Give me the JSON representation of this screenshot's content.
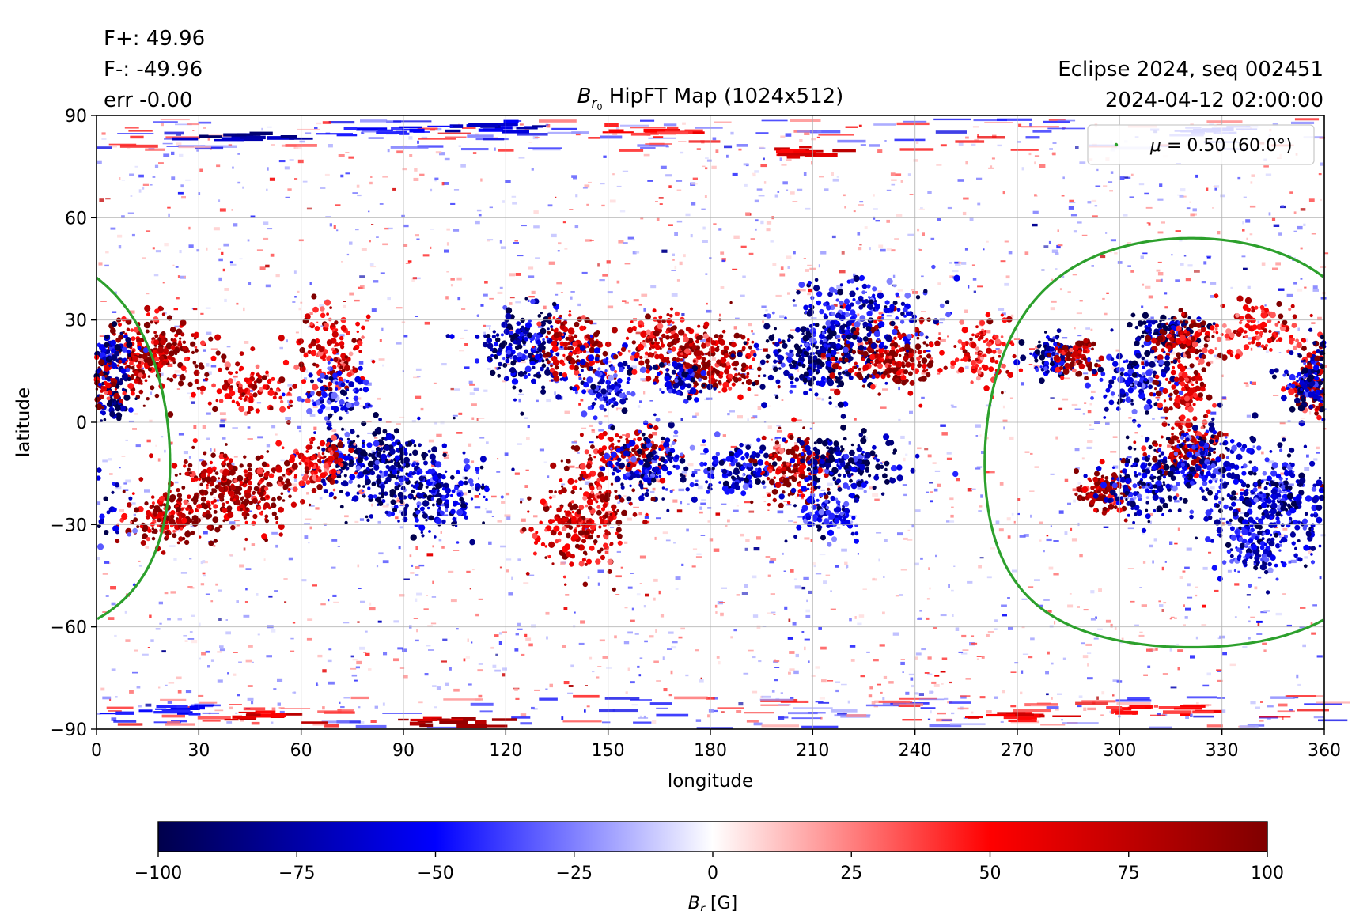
{
  "stats": {
    "fplus": "F+: 49.96",
    "fminus": "F-: -49.96",
    "err": "err -0.00"
  },
  "info": {
    "line1": "Eclipse 2024, seq 002451",
    "line2": "2024-04-12 02:00:00"
  },
  "chart_data": {
    "type": "heatmap",
    "title": {
      "symbol": "B",
      "subscript": "r",
      "subsub": "0",
      "text": " HipFT Map (1024x512)"
    },
    "xlabel": "longitude",
    "ylabel": "latitude",
    "xlim": [
      0,
      360
    ],
    "ylim": [
      -90,
      90
    ],
    "xticks": [
      0,
      30,
      60,
      90,
      120,
      150,
      180,
      210,
      240,
      270,
      300,
      330,
      360
    ],
    "yticks": [
      -90,
      -60,
      -30,
      0,
      30,
      60,
      90
    ],
    "ytick_labels": [
      "−90",
      "−60",
      "−30",
      "0",
      "30",
      "60",
      "90"
    ],
    "grid": true,
    "legend": {
      "position": "top-right",
      "label_symbol": "μ",
      "label_text": " = 0.50 (60.0°)",
      "color": "#2ca02c"
    },
    "mu_contour": {
      "mu": 0.5,
      "angle_deg": 60.0,
      "center_lon": 321,
      "center_lat": -6,
      "color": "#2ca02c"
    },
    "colormap": {
      "name": "seismic",
      "low": "#00004c",
      "mid_low": "#0000ff",
      "mid": "#ffffff",
      "mid_high": "#ff0000",
      "high": "#800000"
    },
    "colorbar": {
      "min": -100,
      "max": 100,
      "ticks": [
        -100,
        -75,
        -50,
        -25,
        0,
        25,
        50,
        75,
        100
      ],
      "tick_labels": [
        "−100",
        "−75",
        "−50",
        "−25",
        "0",
        "25",
        "50",
        "75",
        "100"
      ],
      "label_symbol": "B",
      "label_sub": "r",
      "label_unit": " [G]"
    },
    "active_regions": [
      {
        "lon": 15,
        "lat": 20,
        "polarity": 1,
        "strength": 1.0,
        "spread_lon": 8,
        "spread_lat": 6
      },
      {
        "lon": 3,
        "lat": 20,
        "polarity": -1,
        "strength": 0.9,
        "spread_lon": 4,
        "spread_lat": 3
      },
      {
        "lon": 2,
        "lat": 8,
        "polarity": -1,
        "strength": 1.0,
        "spread_lon": 4,
        "spread_lat": 3
      },
      {
        "lon": 45,
        "lat": 10,
        "polarity": 1,
        "strength": 0.7,
        "spread_lon": 6,
        "spread_lat": 4
      },
      {
        "lon": 70,
        "lat": 20,
        "polarity": 1,
        "strength": 0.7,
        "spread_lon": 5,
        "spread_lat": 6
      },
      {
        "lon": 70,
        "lat": 8,
        "polarity": -1,
        "strength": 0.6,
        "spread_lon": 5,
        "spread_lat": 4
      },
      {
        "lon": 40,
        "lat": -20,
        "polarity": 1,
        "strength": 1.0,
        "spread_lon": 10,
        "spread_lat": 6
      },
      {
        "lon": 20,
        "lat": -28,
        "polarity": 1,
        "strength": 0.9,
        "spread_lon": 6,
        "spread_lat": 4
      },
      {
        "lon": 80,
        "lat": -12,
        "polarity": -1,
        "strength": 1.0,
        "spread_lon": 8,
        "spread_lat": 6
      },
      {
        "lon": 65,
        "lat": -12,
        "polarity": 1,
        "strength": 0.7,
        "spread_lon": 5,
        "spread_lat": 4
      },
      {
        "lon": 100,
        "lat": -20,
        "polarity": -1,
        "strength": 0.8,
        "spread_lon": 9,
        "spread_lat": 6
      },
      {
        "lon": 125,
        "lat": 22,
        "polarity": -1,
        "strength": 0.9,
        "spread_lon": 7,
        "spread_lat": 6
      },
      {
        "lon": 140,
        "lat": 22,
        "polarity": 1,
        "strength": 0.8,
        "spread_lon": 5,
        "spread_lat": 5
      },
      {
        "lon": 150,
        "lat": 12,
        "polarity": -1,
        "strength": 0.6,
        "spread_lon": 5,
        "spread_lat": 5
      },
      {
        "lon": 155,
        "lat": -10,
        "polarity": 1,
        "strength": 0.8,
        "spread_lon": 6,
        "spread_lat": 4
      },
      {
        "lon": 162,
        "lat": -13,
        "polarity": -1,
        "strength": 0.8,
        "spread_lon": 6,
        "spread_lat": 5
      },
      {
        "lon": 143,
        "lat": -28,
        "polarity": 1,
        "strength": 0.8,
        "spread_lon": 7,
        "spread_lat": 8
      },
      {
        "lon": 180,
        "lat": 18,
        "polarity": 1,
        "strength": 1.0,
        "spread_lon": 8,
        "spread_lat": 5
      },
      {
        "lon": 165,
        "lat": 24,
        "polarity": 1,
        "strength": 0.8,
        "spread_lon": 5,
        "spread_lat": 4
      },
      {
        "lon": 172,
        "lat": 12,
        "polarity": -1,
        "strength": 0.7,
        "spread_lon": 4,
        "spread_lat": 3
      },
      {
        "lon": 188,
        "lat": -14,
        "polarity": -1,
        "strength": 0.7,
        "spread_lon": 6,
        "spread_lat": 4
      },
      {
        "lon": 212,
        "lat": 20,
        "polarity": -1,
        "strength": 1.0,
        "spread_lon": 9,
        "spread_lat": 6
      },
      {
        "lon": 232,
        "lat": 19,
        "polarity": 1,
        "strength": 1.0,
        "spread_lon": 8,
        "spread_lat": 5
      },
      {
        "lon": 204,
        "lat": -13,
        "polarity": 1,
        "strength": 1.0,
        "spread_lon": 5,
        "spread_lat": 5
      },
      {
        "lon": 220,
        "lat": -12,
        "polarity": -1,
        "strength": 1.0,
        "spread_lon": 8,
        "spread_lat": 4
      },
      {
        "lon": 215,
        "lat": -28,
        "polarity": -1,
        "strength": 0.6,
        "spread_lon": 6,
        "spread_lat": 4
      },
      {
        "lon": 225,
        "lat": 32,
        "polarity": -1,
        "strength": 0.6,
        "spread_lon": 10,
        "spread_lat": 5
      },
      {
        "lon": 260,
        "lat": 20,
        "polarity": 1,
        "strength": 0.6,
        "spread_lon": 5,
        "spread_lat": 5
      },
      {
        "lon": 281,
        "lat": 20,
        "polarity": -1,
        "strength": 1.0,
        "spread_lon": 4,
        "spread_lat": 3
      },
      {
        "lon": 287,
        "lat": 19,
        "polarity": 1,
        "strength": 1.0,
        "spread_lon": 3,
        "spread_lat": 3
      },
      {
        "lon": 313,
        "lat": 26,
        "polarity": -1,
        "strength": 1.0,
        "spread_lon": 5,
        "spread_lat": 3
      },
      {
        "lon": 318,
        "lat": 24,
        "polarity": 1,
        "strength": 1.0,
        "spread_lon": 4,
        "spread_lat": 3
      },
      {
        "lon": 305,
        "lat": 12,
        "polarity": -1,
        "strength": 0.7,
        "spread_lon": 6,
        "spread_lat": 5
      },
      {
        "lon": 320,
        "lat": 10,
        "polarity": 1,
        "strength": 0.8,
        "spread_lon": 4,
        "spread_lat": 5
      },
      {
        "lon": 340,
        "lat": 27,
        "polarity": 1,
        "strength": 0.6,
        "spread_lon": 8,
        "spread_lat": 4
      },
      {
        "lon": 358,
        "lat": 10,
        "polarity": 1,
        "strength": 0.9,
        "spread_lon": 4,
        "spread_lat": 4
      },
      {
        "lon": 355,
        "lat": 12,
        "polarity": -1,
        "strength": 0.8,
        "spread_lon": 3,
        "spread_lat": 4
      },
      {
        "lon": 320,
        "lat": -8,
        "polarity": 1,
        "strength": 1.0,
        "spread_lon": 5,
        "spread_lat": 4
      },
      {
        "lon": 326,
        "lat": -12,
        "polarity": -1,
        "strength": 0.8,
        "spread_lon": 6,
        "spread_lat": 5
      },
      {
        "lon": 296,
        "lat": -20,
        "polarity": 1,
        "strength": 1.0,
        "spread_lon": 5,
        "spread_lat": 3
      },
      {
        "lon": 308,
        "lat": -18,
        "polarity": -1,
        "strength": 0.8,
        "spread_lon": 6,
        "spread_lat": 5
      },
      {
        "lon": 345,
        "lat": -25,
        "polarity": -1,
        "strength": 0.8,
        "spread_lon": 10,
        "spread_lat": 8
      },
      {
        "lon": 340,
        "lat": -38,
        "polarity": -1,
        "strength": 0.6,
        "spread_lon": 5,
        "spread_lat": 4
      }
    ],
    "polar_features": [
      {
        "lon": 40,
        "lat": 84,
        "polarity": -1,
        "strength": 1.0
      },
      {
        "lon": 115,
        "lat": 87,
        "polarity": -1,
        "strength": 0.8
      },
      {
        "lon": 85,
        "lat": 86,
        "polarity": -1,
        "strength": 0.6
      },
      {
        "lon": 205,
        "lat": 80,
        "polarity": 1,
        "strength": 0.8
      },
      {
        "lon": 160,
        "lat": 86,
        "polarity": 1,
        "strength": 0.6
      },
      {
        "lon": 325,
        "lat": 86,
        "polarity": -1,
        "strength": 0.6
      },
      {
        "lon": 100,
        "lat": -88,
        "polarity": 1,
        "strength": 1.0
      },
      {
        "lon": 45,
        "lat": -86,
        "polarity": 1,
        "strength": 0.8
      },
      {
        "lon": 270,
        "lat": -86,
        "polarity": 1,
        "strength": 0.7
      },
      {
        "lon": 15,
        "lat": -84,
        "polarity": -1,
        "strength": 0.6
      },
      {
        "lon": 310,
        "lat": -84,
        "polarity": 1,
        "strength": 0.6
      }
    ]
  }
}
